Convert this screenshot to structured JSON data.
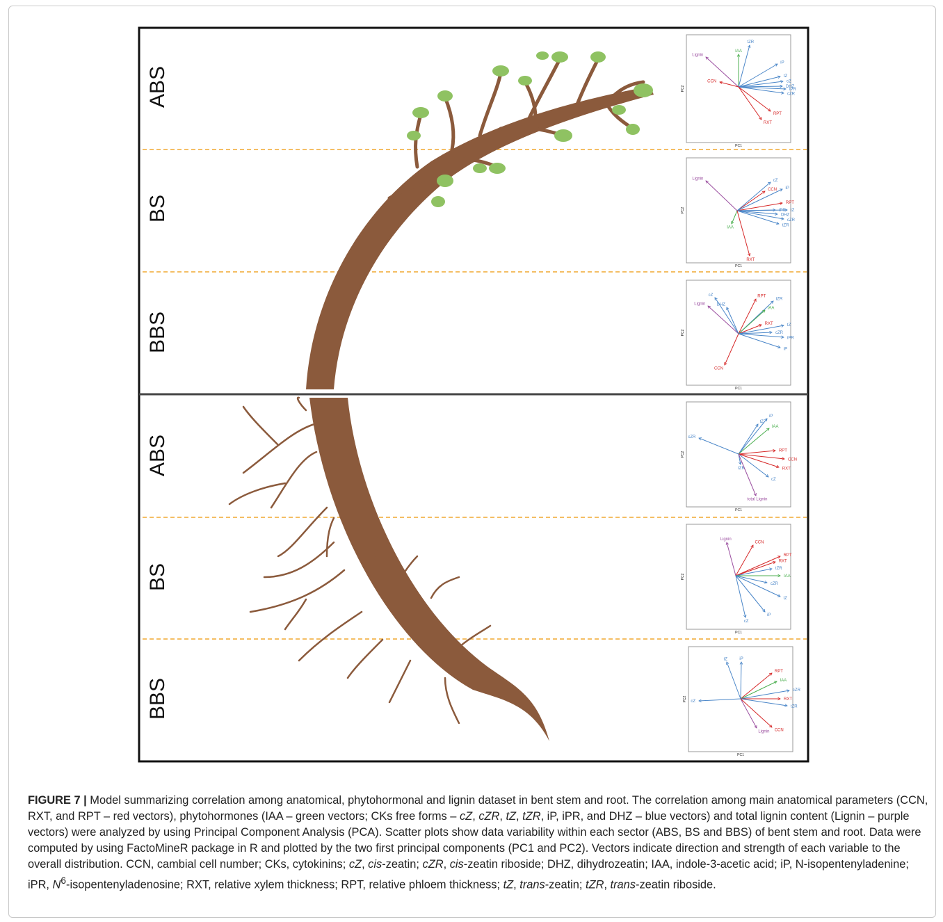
{
  "sections": [
    "ABS",
    "BS",
    "BBS",
    "ABS",
    "BS",
    "BBS"
  ],
  "pca_axes": {
    "x_label": "PC1",
    "y_label": "PC2"
  },
  "panels": [
    {
      "vectors": [
        {
          "label": "Lignin",
          "color": "#9b4fa0"
        },
        {
          "label": "IAA",
          "color": "#4caf50"
        },
        {
          "label": "tZR",
          "color": "#4a86c8"
        },
        {
          "label": "iP",
          "color": "#4a86c8"
        },
        {
          "label": "tZ",
          "color": "#4a86c8"
        },
        {
          "label": "cZ",
          "color": "#4a86c8"
        },
        {
          "label": "DHZ",
          "color": "#4a86c8"
        },
        {
          "label": "iPR",
          "color": "#4a86c8"
        },
        {
          "label": "cZR",
          "color": "#4a86c8"
        },
        {
          "label": "CCN",
          "color": "#d62828"
        },
        {
          "label": "RPT",
          "color": "#d62828"
        },
        {
          "label": "RXT",
          "color": "#d62828"
        }
      ]
    },
    {
      "vectors": [
        {
          "label": "Lignin",
          "color": "#9b4fa0"
        },
        {
          "label": "CCN",
          "color": "#d62828"
        },
        {
          "label": "cZ",
          "color": "#4a86c8"
        },
        {
          "label": "iP",
          "color": "#4a86c8"
        },
        {
          "label": "RPT",
          "color": "#d62828"
        },
        {
          "label": "iPR",
          "color": "#4a86c8"
        },
        {
          "label": "tZ",
          "color": "#4a86c8"
        },
        {
          "label": "DHZ",
          "color": "#4a86c8"
        },
        {
          "label": "cZR",
          "color": "#4a86c8"
        },
        {
          "label": "tZR",
          "color": "#4a86c8"
        },
        {
          "label": "IAA",
          "color": "#4caf50"
        },
        {
          "label": "RXT",
          "color": "#d62828"
        }
      ]
    },
    {
      "vectors": [
        {
          "label": "cZ",
          "color": "#4a86c8"
        },
        {
          "label": "Lignin",
          "color": "#9b4fa0"
        },
        {
          "label": "DHZ",
          "color": "#4a86c8"
        },
        {
          "label": "RPT",
          "color": "#d62828"
        },
        {
          "label": "tZR",
          "color": "#4a86c8"
        },
        {
          "label": "IAA",
          "color": "#4caf50"
        },
        {
          "label": "RXT",
          "color": "#d62828"
        },
        {
          "label": "tZ",
          "color": "#4a86c8"
        },
        {
          "label": "cZR",
          "color": "#4a86c8"
        },
        {
          "label": "iPR",
          "color": "#4a86c8"
        },
        {
          "label": "iP",
          "color": "#4a86c8"
        },
        {
          "label": "CCN",
          "color": "#d62828"
        }
      ]
    },
    {
      "vectors": [
        {
          "label": "cZR",
          "color": "#4a86c8"
        },
        {
          "label": "iP",
          "color": "#4a86c8"
        },
        {
          "label": "tZ",
          "color": "#4a86c8"
        },
        {
          "label": "IAA",
          "color": "#4caf50"
        },
        {
          "label": "RPT",
          "color": "#d62828"
        },
        {
          "label": "CCN",
          "color": "#d62828"
        },
        {
          "label": "RXT",
          "color": "#d62828"
        },
        {
          "label": "tZR",
          "color": "#4a86c8"
        },
        {
          "label": "cZ",
          "color": "#4a86c8"
        },
        {
          "label": "total Lignin",
          "color": "#9b4fa0"
        }
      ]
    },
    {
      "vectors": [
        {
          "label": "Lignin",
          "color": "#9b4fa0"
        },
        {
          "label": "CCN",
          "color": "#d62828"
        },
        {
          "label": "RPT",
          "color": "#d62828"
        },
        {
          "label": "RXT",
          "color": "#d62828"
        },
        {
          "label": "tZR",
          "color": "#4a86c8"
        },
        {
          "label": "IAA",
          "color": "#4caf50"
        },
        {
          "label": "cZR",
          "color": "#4a86c8"
        },
        {
          "label": "tZ",
          "color": "#4a86c8"
        },
        {
          "label": "iP",
          "color": "#4a86c8"
        },
        {
          "label": "cZ",
          "color": "#4a86c8"
        }
      ]
    },
    {
      "vectors": [
        {
          "label": "tZ",
          "color": "#4a86c8"
        },
        {
          "label": "iP",
          "color": "#4a86c8"
        },
        {
          "label": "RPT",
          "color": "#d62828"
        },
        {
          "label": "IAA",
          "color": "#4caf50"
        },
        {
          "label": "cZR",
          "color": "#4a86c8"
        },
        {
          "label": "RXT",
          "color": "#d62828"
        },
        {
          "label": "tZR",
          "color": "#4a86c8"
        },
        {
          "label": "cZ",
          "color": "#4a86c8"
        },
        {
          "label": "Lignin",
          "color": "#9b4fa0"
        },
        {
          "label": "CCN",
          "color": "#d62828"
        }
      ]
    }
  ],
  "caption": [
    "FIGURE 7 | ",
    "Model summarizing correlation among anatomical, phytohormonal and lignin dataset in bent stem and root. The correlation among main anatomical parameters (CCN, RXT, and RPT – red vectors), phytohormones (IAA – green vectors; CKs free forms – ",
    "cZ",
    ", ",
    "cZR",
    ", ",
    "tZ",
    ", ",
    "tZR",
    ", iP, iPR, and DHZ – blue vectors) and total lignin content (Lignin – purple vectors) were analyzed by using Principal Component Analysis (PCA). Scatter plots show data variability within each sector (ABS, BS and BBS) of bent stem and root. Data were computed by using FactoMineR package in R and plotted by the two first principal components (PC1 and PC2). Vectors indicate direction and strength of each variable to the overall distribution. CCN, cambial cell number; CKs, cytokinins; ",
    "cZ",
    ", ",
    "cis",
    "-zeatin; ",
    "cZR",
    ", ",
    "cis",
    "-zeatin riboside; DHZ, dihydrozeatin; IAA, indole-3-acetic acid; iP, N-isopentenyladenine; iPR, ",
    "N",
    "6",
    "-isopentenyladenosine; RXT, relative xylem thickness; RPT, relative phloem thickness; ",
    "tZ",
    ", ",
    "trans",
    "-zeatin; ",
    "tZR",
    ", ",
    "trans",
    "-zeatin riboside."
  ]
}
